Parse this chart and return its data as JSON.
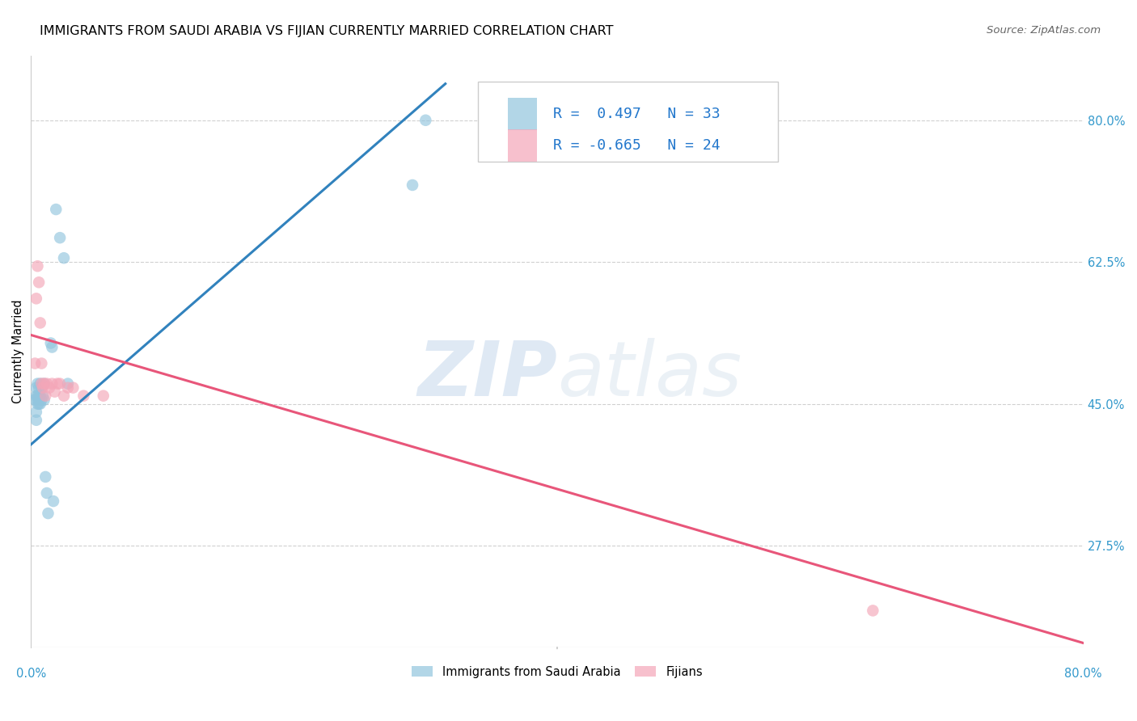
{
  "title": "IMMIGRANTS FROM SAUDI ARABIA VS FIJIAN CURRENTLY MARRIED CORRELATION CHART",
  "source": "Source: ZipAtlas.com",
  "ylabel": "Currently Married",
  "right_yticks": [
    "80.0%",
    "62.5%",
    "45.0%",
    "27.5%"
  ],
  "right_ytick_vals": [
    0.8,
    0.625,
    0.45,
    0.275
  ],
  "xmin": 0.0,
  "xmax": 0.8,
  "ymin": 0.15,
  "ymax": 0.88,
  "blue_color": "#92c5de",
  "pink_color": "#f4a6b8",
  "blue_line_color": "#3182bd",
  "pink_line_color": "#e8567a",
  "watermark_zip": "ZIP",
  "watermark_atlas": "atlas",
  "legend1_label": "Immigrants from Saudi Arabia",
  "legend2_label": "Fijians",
  "saudi_x": [
    0.003,
    0.004,
    0.004,
    0.004,
    0.004,
    0.005,
    0.005,
    0.005,
    0.005,
    0.006,
    0.006,
    0.006,
    0.007,
    0.007,
    0.007,
    0.008,
    0.008,
    0.009,
    0.01,
    0.01,
    0.011,
    0.012,
    0.013,
    0.015,
    0.016,
    0.017,
    0.019,
    0.022,
    0.025,
    0.028,
    0.29,
    0.3
  ],
  "saudi_y": [
    0.455,
    0.47,
    0.46,
    0.44,
    0.43,
    0.475,
    0.46,
    0.455,
    0.45,
    0.47,
    0.46,
    0.45,
    0.475,
    0.46,
    0.45,
    0.47,
    0.455,
    0.46,
    0.475,
    0.455,
    0.36,
    0.34,
    0.315,
    0.525,
    0.52,
    0.33,
    0.69,
    0.655,
    0.63,
    0.475,
    0.72,
    0.8
  ],
  "fijian_x": [
    0.003,
    0.004,
    0.005,
    0.006,
    0.007,
    0.008,
    0.008,
    0.009,
    0.01,
    0.011,
    0.012,
    0.014,
    0.016,
    0.018,
    0.02,
    0.022,
    0.025,
    0.028,
    0.032,
    0.04,
    0.055,
    0.64
  ],
  "fijian_y": [
    0.5,
    0.58,
    0.62,
    0.6,
    0.55,
    0.5,
    0.475,
    0.47,
    0.475,
    0.46,
    0.475,
    0.47,
    0.475,
    0.465,
    0.475,
    0.475,
    0.46,
    0.47,
    0.47,
    0.46,
    0.46,
    0.195
  ],
  "blue_trend_x": [
    0.0,
    0.315
  ],
  "blue_trend_y": [
    0.4,
    0.845
  ],
  "pink_trend_x": [
    0.0,
    0.8
  ],
  "pink_trend_y": [
    0.535,
    0.155
  ]
}
